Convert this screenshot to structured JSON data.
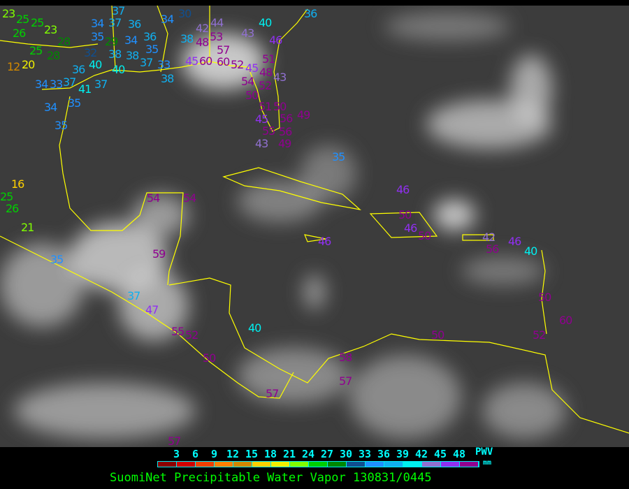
{
  "legend": {
    "ticks": [
      "3",
      "6",
      "9",
      "12",
      "15",
      "18",
      "21",
      "24",
      "27",
      "30",
      "33",
      "36",
      "39",
      "42",
      "45",
      "48"
    ],
    "unit_top": "PWV",
    "unit_bottom": "mm",
    "colors": [
      "#8b0000",
      "#d00000",
      "#f04000",
      "#ff8000",
      "#d08800",
      "#ffd000",
      "#f0f000",
      "#80ff00",
      "#00d000",
      "#008800",
      "#104f90",
      "#2090ff",
      "#10b0f0",
      "#00f0f0",
      "#9070d0",
      "#9030f0",
      "#900090"
    ],
    "tick_color": "#00ffff"
  },
  "title": "SuomiNet Precipitable Water Vapor 130831/0445",
  "title_color": "#00ff00",
  "coastline_color": "#ffff00",
  "stations": [
    "23",
    "25",
    "25",
    "26",
    "23",
    "28",
    "25",
    "28",
    "12",
    "20",
    "32",
    "36",
    "40",
    "34",
    "33",
    "37",
    "41",
    "37",
    "34",
    "35",
    "35",
    "35",
    "34",
    "37",
    "29",
    "37",
    "36",
    "34",
    "36",
    "35",
    "38",
    "38",
    "37",
    "40",
    "34",
    "30",
    "38",
    "42",
    "44",
    "48",
    "53",
    "57",
    "45",
    "60",
    "60",
    "52",
    "45",
    "54",
    "48",
    "43",
    "51",
    "52",
    "50",
    "51",
    "40",
    "43",
    "46",
    "36",
    "33",
    "38",
    "50",
    "56",
    "49",
    "45",
    "55",
    "56",
    "49",
    "43",
    "35",
    "16",
    "25",
    "26",
    "21",
    "35",
    "54",
    "54",
    "59",
    "37",
    "47",
    "55",
    "52",
    "40",
    "46",
    "46",
    "50",
    "46",
    "50",
    "42",
    "56",
    "46",
    "40",
    "50",
    "50",
    "52",
    "60",
    "58",
    "57",
    "57",
    "50",
    "57"
  ]
}
